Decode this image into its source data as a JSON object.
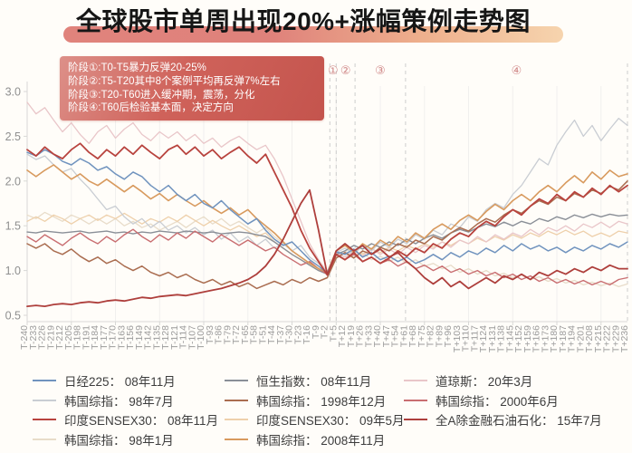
{
  "title": "全球股市单周出现20%+涨幅策例走势图",
  "annotation": {
    "lines": [
      "阶段①:T0-T5暴力反弹20-25%",
      "阶段②:T5-T20其中8个案例平均再反弹7%左右",
      "阶段③:T20-T60进入缓冲期，震荡，分化",
      "阶段④:T60后检验基本面，决定方向"
    ]
  },
  "colors": {
    "title_highlight_left": "#e0837c",
    "title_highlight_right": "#f6d4ae",
    "annotation_bg": "#c4544d",
    "stage_label": "#d08888",
    "dashed_line": "#cdcdcd",
    "axis": "#d8d8d6",
    "x_tick_text": "#9c9c9c",
    "y_tick_text": "#8f8f8f",
    "gridline": "#f1f0ee",
    "legend_text": "#3d3d3d",
    "background": "#fffdf9"
  },
  "chart_data": {
    "type": "line",
    "title": "全球股市单周出现20%+涨幅策例走势图",
    "xlabel": "",
    "ylabel": "",
    "ylim": [
      0.5,
      3.0
    ],
    "y_ticks": [
      3.0,
      2.5,
      2.0,
      1.5,
      1.0,
      0.5
    ],
    "grid": "faint vertical gridlines every 5th tick, no horizontal gridlines",
    "legend_position": "bottom, three columns",
    "x_axis": {
      "prefix": "T",
      "start": -240,
      "step": 7,
      "count": 69
    },
    "x_tick_labels": [
      "T-240",
      "T-233",
      "T-226",
      "T-219",
      "T-212",
      "T-205",
      "T-198",
      "T-191",
      "T-184",
      "T-177",
      "T-170",
      "T-163",
      "T-156",
      "T-149",
      "T-142",
      "T-135",
      "T-128",
      "T-121",
      "T-114",
      "T-107",
      "T-100",
      "T-93",
      "T-86",
      "T-79",
      "T-72",
      "T-65",
      "T-58",
      "T-51",
      "T-44",
      "T-37",
      "T-30",
      "T-23",
      "T-16",
      "T-9",
      "T-2",
      "T+5",
      "T+12",
      "T+19",
      "T+26",
      "T+33",
      "T+40",
      "T+47",
      "T+54",
      "T+61",
      "T+68",
      "T+75",
      "T+82",
      "T+89",
      "T+96",
      "T+103",
      "T+110",
      "T+117",
      "T+124",
      "T+131",
      "T+138",
      "T+145",
      "T+152",
      "T+159",
      "T+166",
      "T+173",
      "T+180",
      "T+187",
      "T+194",
      "T+201",
      "T+208",
      "T+215",
      "T+222",
      "T+229",
      "T+236"
    ],
    "stage_boundaries_t": [
      0,
      5,
      20,
      60,
      236
    ],
    "stage_markers": [
      {
        "label": "①",
        "t": 2.5
      },
      {
        "label": "②",
        "t": 12.5
      },
      {
        "label": "③",
        "t": 40
      },
      {
        "label": "④",
        "t": 148
      }
    ],
    "draw_order": [
      3,
      6,
      8,
      1,
      4,
      9,
      5,
      7,
      0,
      2,
      10
    ],
    "series": [
      {
        "name": "日经225",
        "date": "08年11月",
        "color": "#7093be",
        "width": 1.5,
        "values": [
          2.32,
          2.28,
          2.35,
          2.3,
          2.22,
          2.18,
          2.25,
          2.2,
          2.12,
          2.16,
          2.08,
          2.02,
          2.1,
          2.05,
          1.95,
          1.88,
          1.95,
          1.85,
          1.78,
          1.85,
          1.75,
          1.7,
          1.78,
          1.68,
          1.6,
          1.52,
          1.58,
          1.45,
          1.35,
          1.28,
          1.32,
          1.22,
          1.12,
          1.05,
          0.97,
          1.21,
          1.18,
          1.24,
          1.15,
          1.2,
          1.12,
          1.16,
          1.1,
          1.15,
          1.08,
          1.12,
          1.18,
          1.12,
          1.2,
          1.15,
          1.22,
          1.18,
          1.25,
          1.2,
          1.28,
          1.22,
          1.3,
          1.24,
          1.28,
          1.22,
          1.26,
          1.2,
          1.26,
          1.22,
          1.28,
          1.24,
          1.3,
          1.26,
          1.32
        ]
      },
      {
        "name": "韩国综指",
        "date": "98年7月",
        "color": "#c9cdd3",
        "width": 1.3,
        "values": [
          2.3,
          2.24,
          2.28,
          2.18,
          2.1,
          2.14,
          2.02,
          1.92,
          1.8,
          1.68,
          1.72,
          1.6,
          1.52,
          1.58,
          1.48,
          1.55,
          1.45,
          1.5,
          1.42,
          1.48,
          1.4,
          1.45,
          1.35,
          1.42,
          1.32,
          1.38,
          1.28,
          1.35,
          1.25,
          1.3,
          1.22,
          1.28,
          1.15,
          1.08,
          0.98,
          1.2,
          1.25,
          1.18,
          1.28,
          1.22,
          1.32,
          1.26,
          1.35,
          1.3,
          1.4,
          1.35,
          1.45,
          1.4,
          1.52,
          1.48,
          1.6,
          1.55,
          1.68,
          1.75,
          1.7,
          1.85,
          1.95,
          2.1,
          2.25,
          2.18,
          2.4,
          2.55,
          2.68,
          2.5,
          2.62,
          2.45,
          2.58,
          2.7,
          2.62
        ]
      },
      {
        "name": "印度SENSEX30",
        "date": "08年11月",
        "color": "#b8433e",
        "width": 1.8,
        "values": [
          2.35,
          2.28,
          2.38,
          2.3,
          2.25,
          2.35,
          2.42,
          2.32,
          2.25,
          2.35,
          2.28,
          2.38,
          2.3,
          2.4,
          2.32,
          2.25,
          2.35,
          2.4,
          2.3,
          2.38,
          2.28,
          2.35,
          2.25,
          2.32,
          2.38,
          2.28,
          2.2,
          2.3,
          2.1,
          1.9,
          1.7,
          1.45,
          1.25,
          1.1,
          0.95,
          1.18,
          1.12,
          1.2,
          1.1,
          1.15,
          1.08,
          1.14,
          1.22,
          1.16,
          1.25,
          1.2,
          1.3,
          1.25,
          1.35,
          1.42,
          1.38,
          1.48,
          1.55,
          1.5,
          1.6,
          1.68,
          1.62,
          1.72,
          1.8,
          1.75,
          1.85,
          1.78,
          1.88,
          1.82,
          1.92,
          1.85,
          1.95,
          1.88,
          1.95
        ]
      },
      {
        "name": "韩国综指",
        "date": "98年1月",
        "color": "#e8dcc9",
        "width": 1.3,
        "values": [
          1.62,
          1.58,
          1.65,
          1.6,
          1.55,
          1.62,
          1.58,
          1.52,
          1.58,
          1.52,
          1.58,
          1.5,
          1.55,
          1.48,
          1.52,
          1.45,
          1.5,
          1.55,
          1.48,
          1.55,
          1.6,
          1.52,
          1.58,
          1.5,
          1.55,
          1.48,
          1.42,
          1.48,
          1.38,
          1.3,
          1.22,
          1.15,
          1.08,
          1.02,
          0.95,
          1.18,
          1.22,
          1.15,
          1.2,
          1.12,
          1.16,
          1.1,
          1.15,
          1.08,
          1.12,
          1.05,
          1.08,
          1.02,
          1.06,
          0.98,
          1.02,
          0.96,
          1.0,
          0.94,
          0.97,
          0.92,
          0.95,
          0.9,
          0.93,
          0.88,
          0.91,
          0.86,
          0.89,
          0.84,
          0.87,
          0.83,
          0.86,
          0.82,
          0.85
        ]
      },
      {
        "name": "恒生指数",
        "date": "08年11月",
        "color": "#8a8f97",
        "width": 1.4,
        "values": [
          1.43,
          1.42,
          1.44,
          1.43,
          1.42,
          1.43,
          1.44,
          1.42,
          1.43,
          1.44,
          1.42,
          1.43,
          1.41,
          1.43,
          1.42,
          1.44,
          1.43,
          1.42,
          1.44,
          1.43,
          1.42,
          1.43,
          1.41,
          1.42,
          1.43,
          1.42,
          1.4,
          1.38,
          1.32,
          1.25,
          1.18,
          1.12,
          1.06,
          1.0,
          0.96,
          1.18,
          1.22,
          1.28,
          1.24,
          1.3,
          1.26,
          1.32,
          1.28,
          1.35,
          1.3,
          1.36,
          1.4,
          1.36,
          1.42,
          1.46,
          1.43,
          1.48,
          1.52,
          1.49,
          1.54,
          1.5,
          1.55,
          1.52,
          1.58,
          1.55,
          1.6,
          1.57,
          1.62,
          1.59,
          1.63,
          1.6,
          1.63,
          1.61,
          1.62
        ]
      },
      {
        "name": "韩国综指",
        "date": "1998年12月",
        "color": "#aa6d50",
        "width": 1.5,
        "values": [
          1.3,
          1.25,
          1.3,
          1.22,
          1.18,
          1.24,
          1.16,
          1.1,
          1.15,
          1.08,
          1.12,
          1.05,
          1.0,
          1.05,
          0.98,
          0.94,
          0.98,
          0.92,
          0.96,
          0.9,
          0.86,
          0.9,
          0.84,
          0.88,
          0.82,
          0.86,
          0.8,
          0.84,
          0.88,
          0.84,
          0.9,
          0.86,
          0.92,
          0.88,
          0.92,
          1.14,
          1.2,
          1.14,
          1.22,
          1.18,
          1.26,
          1.22,
          1.3,
          1.26,
          1.34,
          1.3,
          1.38,
          1.34,
          1.42,
          1.48,
          1.44,
          1.52,
          1.58,
          1.54,
          1.62,
          1.68,
          1.64,
          1.72,
          1.78,
          1.74,
          1.82,
          1.78,
          1.86,
          1.82,
          1.9,
          1.86,
          1.94,
          1.9,
          2.0
        ]
      },
      {
        "name": "印度SENSEX30",
        "date": "09年5月",
        "color": "#eed0ab",
        "width": 1.3,
        "values": [
          1.55,
          1.6,
          1.55,
          1.62,
          1.58,
          1.52,
          1.58,
          1.62,
          1.56,
          1.62,
          1.58,
          1.64,
          1.58,
          1.52,
          1.58,
          1.54,
          1.6,
          1.55,
          1.62,
          1.56,
          1.5,
          1.56,
          1.5,
          1.45,
          1.5,
          1.44,
          1.38,
          1.42,
          1.32,
          1.25,
          1.18,
          1.12,
          1.06,
          1.0,
          0.97,
          1.2,
          1.15,
          1.22,
          1.18,
          1.24,
          1.2,
          1.26,
          1.22,
          1.28,
          1.24,
          1.3,
          1.26,
          1.32,
          1.28,
          1.34,
          1.3,
          1.36,
          1.32,
          1.38,
          1.34,
          1.4,
          1.36,
          1.42,
          1.38,
          1.44,
          1.4,
          1.45,
          1.4,
          1.44,
          1.38,
          1.42,
          1.38,
          1.44,
          1.42
        ]
      },
      {
        "name": "韩国综指",
        "date": "2008年11月",
        "color": "#d89a5e",
        "width": 1.6,
        "values": [
          2.12,
          2.05,
          2.12,
          2.18,
          2.1,
          2.02,
          2.08,
          2.0,
          1.95,
          2.02,
          1.95,
          1.88,
          1.95,
          1.88,
          1.8,
          1.86,
          1.78,
          1.85,
          1.78,
          1.72,
          1.78,
          1.7,
          1.64,
          1.7,
          1.62,
          1.68,
          1.58,
          1.5,
          1.42,
          1.32,
          1.22,
          1.15,
          1.08,
          1.02,
          0.98,
          1.22,
          1.28,
          1.2,
          1.3,
          1.24,
          1.34,
          1.28,
          1.38,
          1.32,
          1.42,
          1.36,
          1.46,
          1.52,
          1.46,
          1.56,
          1.62,
          1.56,
          1.66,
          1.74,
          1.68,
          1.78,
          1.85,
          1.78,
          1.88,
          1.95,
          1.88,
          1.98,
          2.06,
          1.98,
          2.1,
          2.02,
          2.12,
          2.05,
          2.08
        ]
      },
      {
        "name": "道琼斯",
        "date": "20年3月",
        "color": "#e9c6c9",
        "width": 1.3,
        "values": [
          2.88,
          2.75,
          2.82,
          2.68,
          2.55,
          2.65,
          2.52,
          2.42,
          2.55,
          2.62,
          2.48,
          2.58,
          2.65,
          2.52,
          2.45,
          2.55,
          2.48,
          2.55,
          2.45,
          2.52,
          2.42,
          2.48,
          2.38,
          2.45,
          2.5,
          2.42,
          2.35,
          2.4,
          2.25,
          2.05,
          1.8,
          1.55,
          1.3,
          1.12,
          0.98,
          1.2,
          1.15,
          1.22,
          1.16,
          1.25,
          1.18,
          1.24,
          1.18,
          1.26,
          1.2,
          1.28,
          1.24,
          1.32,
          1.26,
          1.34,
          1.3,
          1.38,
          1.32,
          1.4,
          1.35,
          1.42,
          1.38,
          1.46,
          1.4,
          1.48,
          1.44,
          1.5,
          1.44,
          1.52,
          1.48,
          1.54,
          1.48,
          1.55,
          1.52
        ]
      },
      {
        "name": "韩国综指",
        "date": "2000年6月",
        "color": "#c96e71",
        "width": 1.4,
        "values": [
          1.38,
          1.32,
          1.4,
          1.34,
          1.28,
          1.36,
          1.42,
          1.35,
          1.3,
          1.38,
          1.32,
          1.4,
          1.46,
          1.38,
          1.32,
          1.4,
          1.34,
          1.42,
          1.36,
          1.44,
          1.38,
          1.32,
          1.4,
          1.34,
          1.28,
          1.34,
          1.28,
          1.22,
          1.26,
          1.18,
          1.12,
          1.06,
          1.1,
          1.02,
          0.96,
          1.18,
          1.12,
          1.18,
          1.1,
          1.15,
          1.08,
          1.12,
          1.05,
          1.1,
          1.02,
          1.06,
          1.0,
          1.05,
          0.98,
          1.02,
          0.96,
          1.0,
          0.94,
          0.98,
          0.92,
          0.96,
          0.9,
          0.94,
          0.88,
          0.92,
          0.86,
          0.9,
          0.85,
          0.89,
          0.84,
          0.88,
          0.84,
          0.9,
          0.92
        ]
      },
      {
        "name": "全A除金融石油石化",
        "date": "15年7月",
        "color": "#ae3f3c",
        "width": 1.8,
        "values": [
          0.6,
          0.61,
          0.6,
          0.62,
          0.63,
          0.62,
          0.64,
          0.65,
          0.64,
          0.66,
          0.67,
          0.66,
          0.68,
          0.7,
          0.69,
          0.71,
          0.72,
          0.73,
          0.72,
          0.74,
          0.76,
          0.78,
          0.8,
          0.83,
          0.86,
          0.9,
          0.96,
          1.05,
          1.18,
          1.35,
          1.55,
          1.75,
          1.9,
          1.45,
          0.95,
          1.22,
          1.3,
          1.22,
          1.28,
          1.18,
          1.24,
          1.15,
          1.2,
          1.1,
          1.02,
          0.92,
          0.85,
          0.92,
          0.82,
          0.88,
          0.8,
          0.86,
          0.92,
          0.86,
          0.94,
          0.9,
          0.96,
          0.9,
          0.98,
          0.94,
          1.0,
          0.96,
          1.02,
          0.98,
          1.04,
          1.0,
          1.06,
          1.02,
          1.02
        ]
      }
    ]
  },
  "legend": {
    "separator": "：",
    "columns": [
      [
        0,
        1,
        2,
        3
      ],
      [
        4,
        5,
        6,
        7
      ],
      [
        8,
        9,
        10
      ]
    ]
  }
}
